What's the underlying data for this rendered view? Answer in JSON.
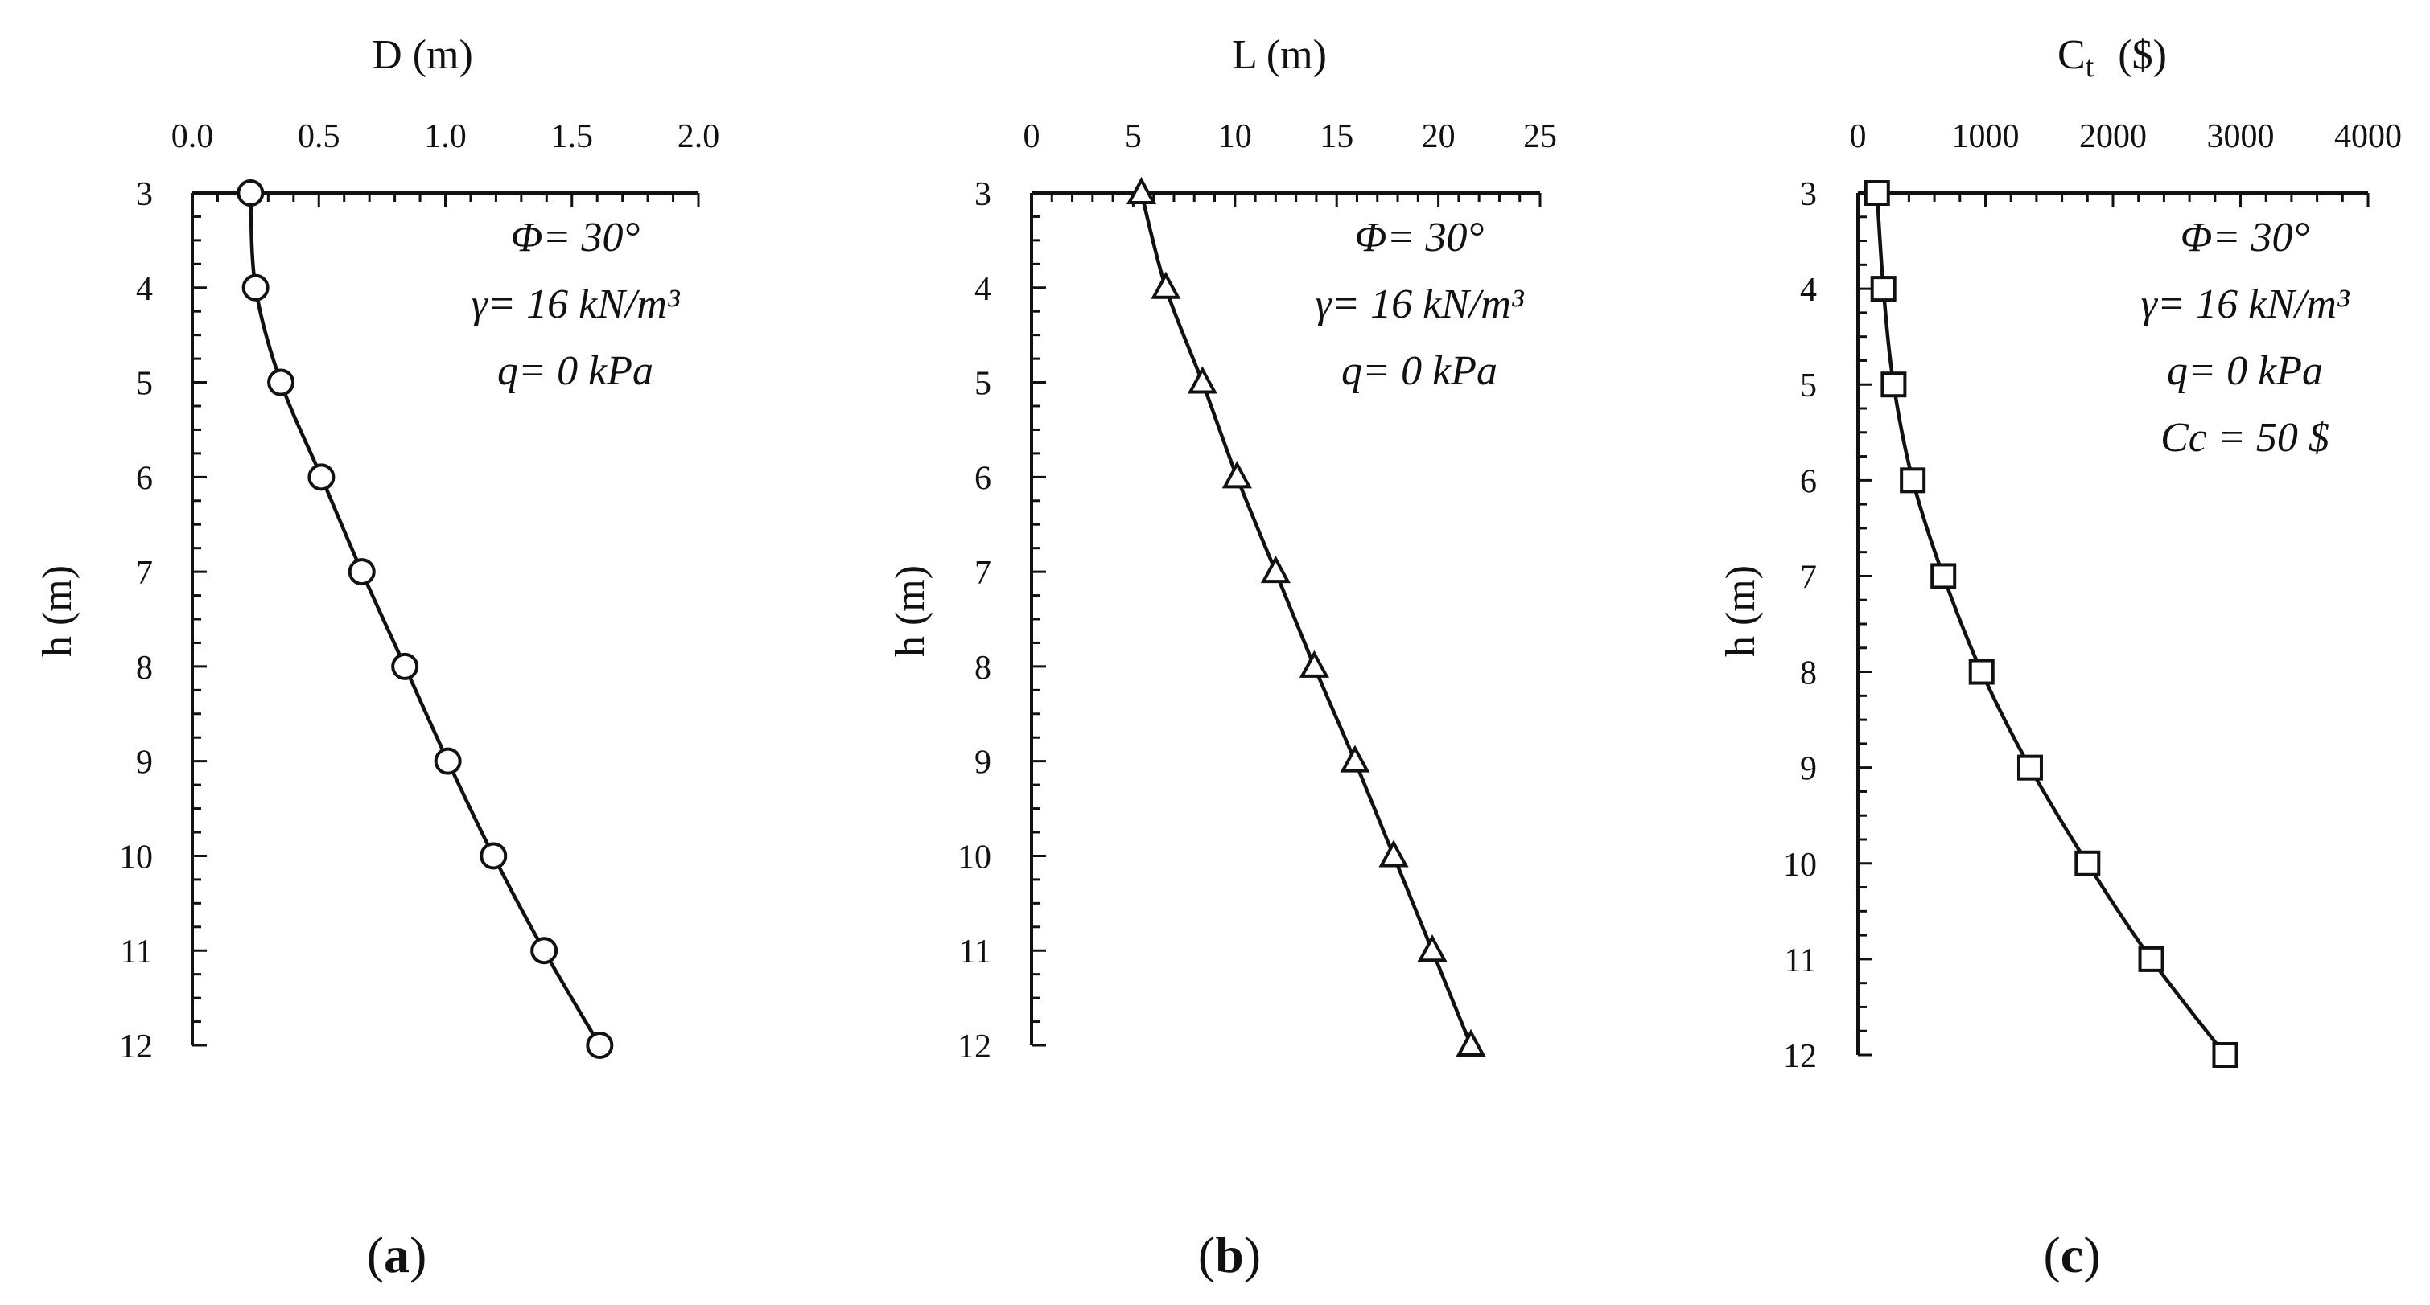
{
  "chart_data": [
    {
      "type": "line",
      "panel_label_open": "(",
      "panel_label_letter": "a",
      "panel_label_close": ")",
      "xlabel_main": "D (m)",
      "xlabel_sub": "",
      "xlabel_unit": "",
      "ylabel": "h (m)",
      "x_axis_position": "top",
      "y_axis_inverted": true,
      "xlim": [
        0,
        2
      ],
      "ylim": [
        3,
        12
      ],
      "xticks": [
        0.0,
        0.5,
        1.0,
        1.5,
        2.0
      ],
      "xtick_labels": [
        "0.0",
        "0.5",
        "1.0",
        "1.5",
        "2.0"
      ],
      "xminor_step": 0.1,
      "yticks": [
        3,
        4,
        5,
        6,
        7,
        8,
        9,
        10,
        11,
        12
      ],
      "ytick_labels": [
        "3",
        "4",
        "5",
        "6",
        "7",
        "8",
        "9",
        "10",
        "11",
        "12"
      ],
      "yminor_step": 0.25,
      "marker": "circle",
      "grid": false,
      "series": [
        {
          "x": [
            0.23,
            0.25,
            0.35,
            0.51,
            0.67,
            0.84,
            1.01,
            1.19,
            1.39,
            1.61
          ],
          "y": [
            3,
            4,
            5,
            6,
            7,
            8,
            9,
            10,
            11,
            12
          ]
        }
      ],
      "annotations": [
        "Φ= 30°",
        "γ= 16 kN/m³",
        "q= 0 kPa"
      ]
    },
    {
      "type": "line",
      "panel_label_open": "(",
      "panel_label_letter": "b",
      "panel_label_close": ")",
      "xlabel_main": "L (m)",
      "xlabel_sub": "",
      "xlabel_unit": "",
      "ylabel": "h (m)",
      "x_axis_position": "top",
      "y_axis_inverted": true,
      "xlim": [
        0,
        25
      ],
      "ylim": [
        3,
        12
      ],
      "xticks": [
        0,
        5,
        10,
        15,
        20,
        25
      ],
      "xtick_labels": [
        "0",
        "5",
        "10",
        "15",
        "20",
        "25"
      ],
      "xminor_step": 1,
      "yticks": [
        3,
        4,
        5,
        6,
        7,
        8,
        9,
        10,
        11,
        12
      ],
      "ytick_labels": [
        "3",
        "4",
        "5",
        "6",
        "7",
        "8",
        "9",
        "10",
        "11",
        "12"
      ],
      "yminor_step": 0.25,
      "marker": "triangle",
      "grid": false,
      "series": [
        {
          "x": [
            5.4,
            6.6,
            8.4,
            10.1,
            12.0,
            13.9,
            15.9,
            17.8,
            19.7,
            21.6
          ],
          "y": [
            3,
            4,
            5,
            6,
            7,
            8,
            9,
            10,
            11,
            12
          ]
        }
      ],
      "annotations": [
        "Φ= 30°",
        "γ= 16 kN/m³",
        "q= 0 kPa"
      ]
    },
    {
      "type": "line",
      "panel_label_open": "(",
      "panel_label_letter": "c",
      "panel_label_close": ")",
      "xlabel_main": "C",
      "xlabel_sub": "t",
      "xlabel_unit": "($)",
      "ylabel": "h (m)",
      "x_axis_position": "top",
      "y_axis_inverted": true,
      "xlim": [
        0,
        4000
      ],
      "ylim": [
        3,
        12
      ],
      "xticks": [
        0,
        1000,
        2000,
        3000,
        4000
      ],
      "xtick_labels": [
        "0",
        "1000",
        "2000",
        "3000",
        "4000"
      ],
      "xminor_step": 200,
      "yticks": [
        3,
        4,
        5,
        6,
        7,
        8,
        9,
        10,
        11,
        12
      ],
      "ytick_labels": [
        "3",
        "4",
        "5",
        "6",
        "7",
        "8",
        "9",
        "10",
        "11",
        "12"
      ],
      "yminor_step": 0.25,
      "marker": "square",
      "grid": false,
      "series": [
        {
          "x": [
            150,
            200,
            280,
            430,
            670,
            970,
            1350,
            1800,
            2300,
            2880
          ],
          "y": [
            3,
            4,
            5,
            6,
            7,
            8,
            9,
            10,
            11,
            12
          ]
        }
      ],
      "annotations": [
        "Φ= 30°",
        "γ= 16 kN/m³",
        "q= 0 kPa",
        "Cc = 50 $"
      ]
    }
  ]
}
